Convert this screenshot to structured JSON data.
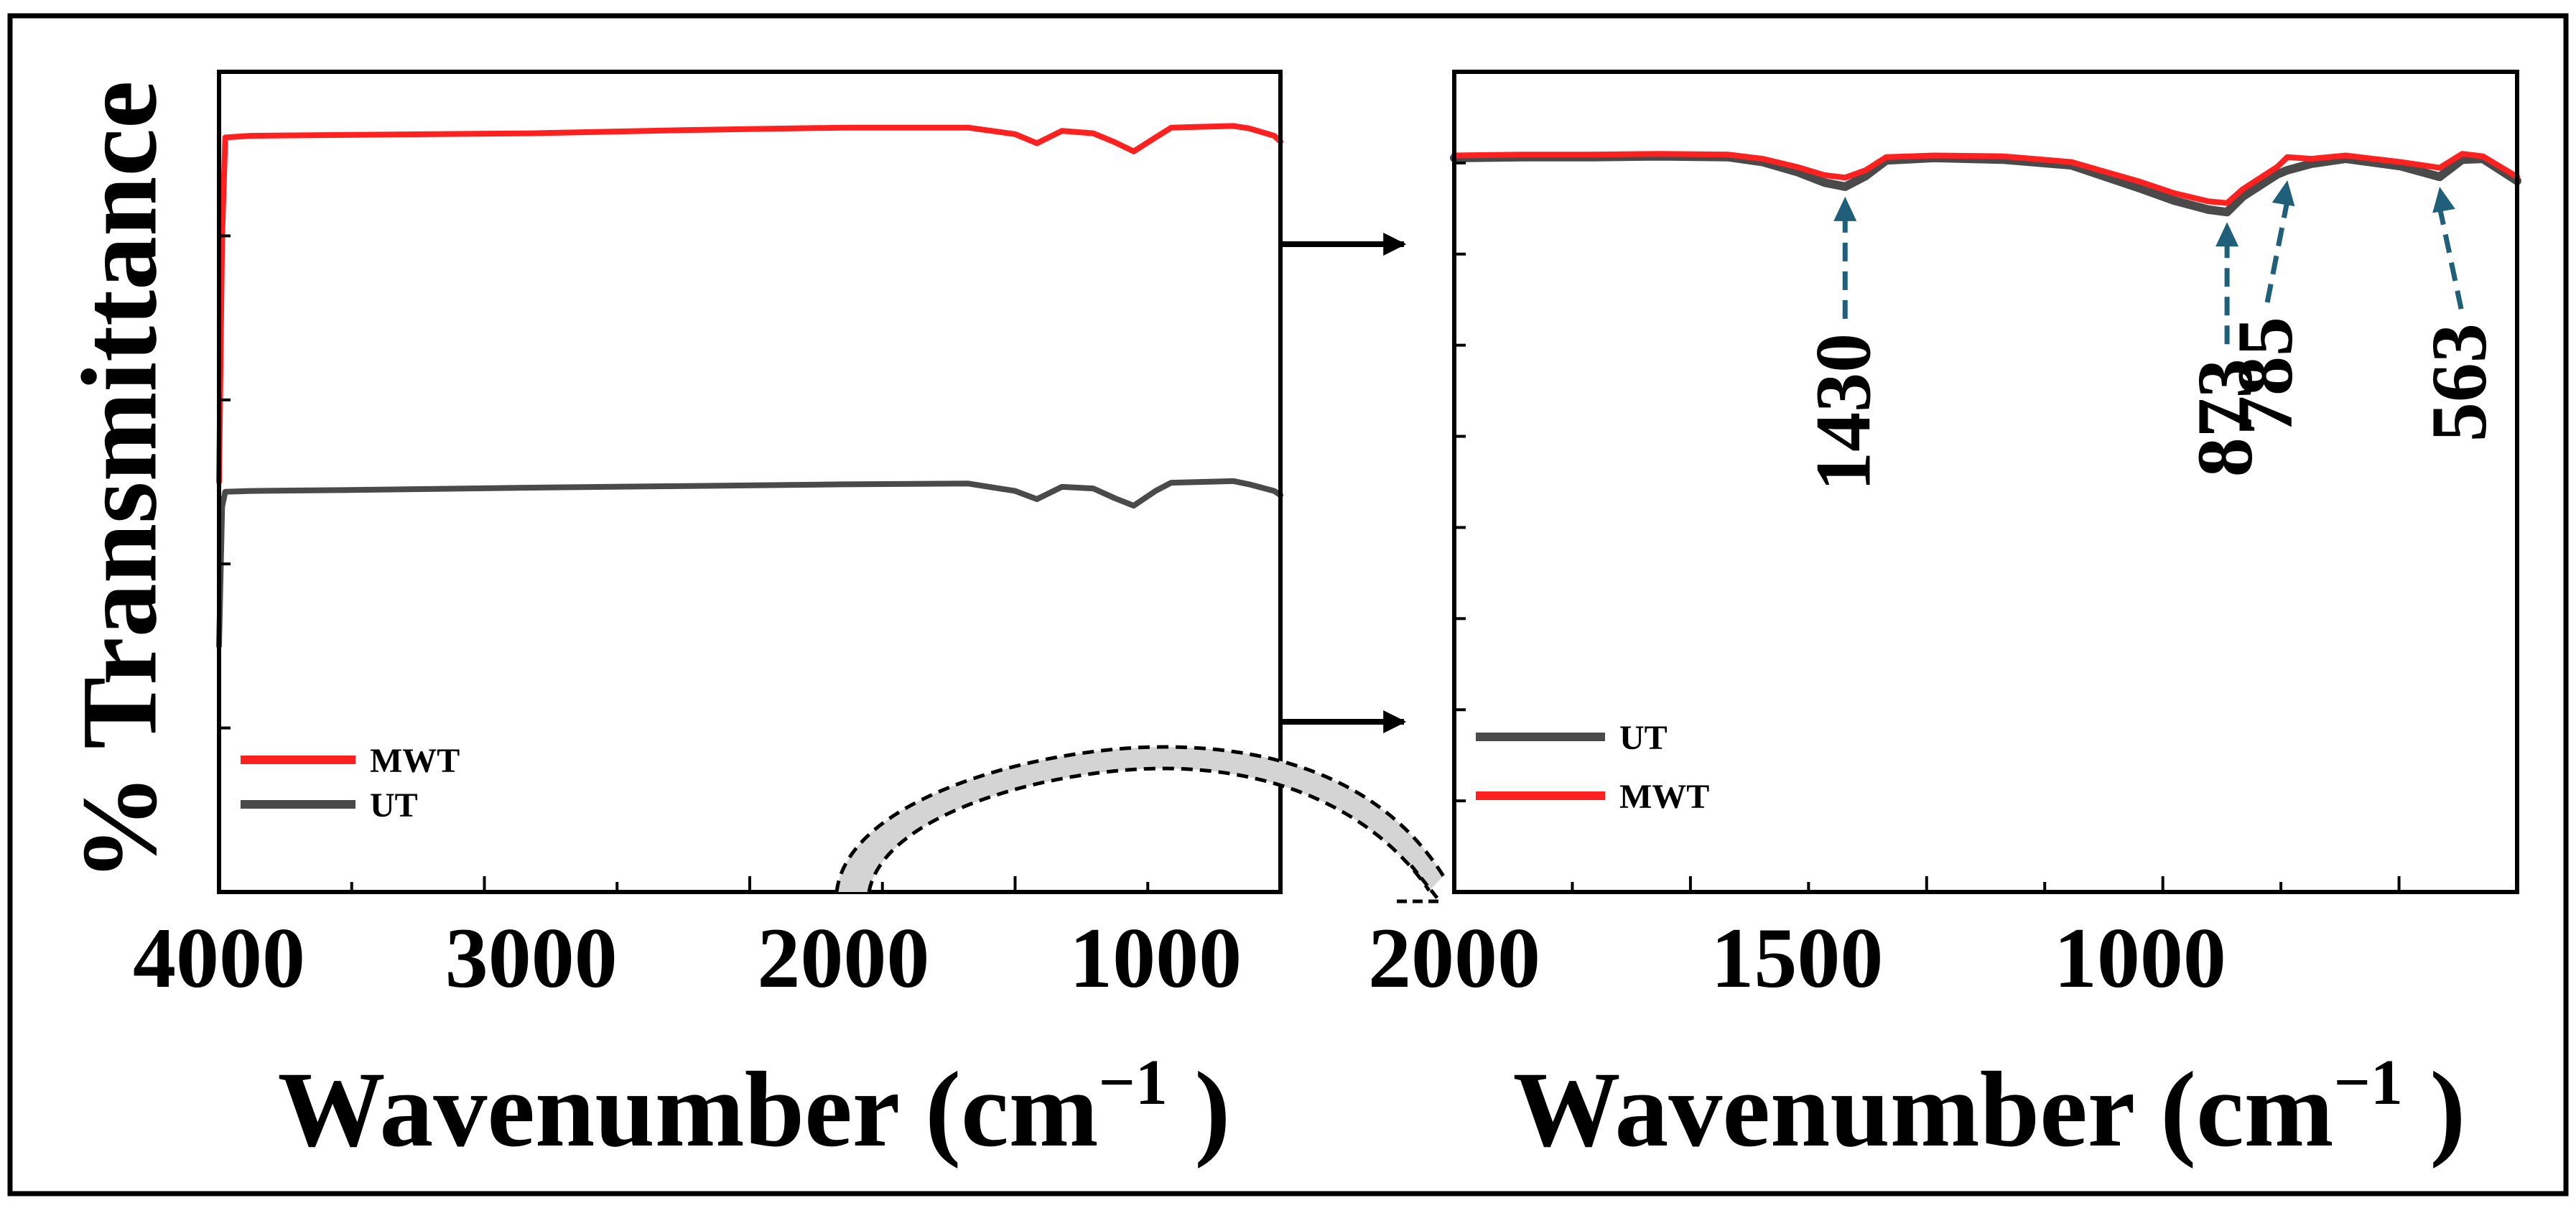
{
  "chart_data": [
    {
      "type": "line",
      "title": "",
      "xlabel": "Wavenumber (cm",
      "xlabel_sup": "−1",
      "xlabel_end": " )",
      "ylabel": "% Transmittance",
      "xlim": [
        4000,
        600
      ],
      "ylim": [
        0,
        100
      ],
      "x_ticks": [
        "4000",
        "3000",
        "2000",
        "1000"
      ],
      "x_tick_values": [
        4000,
        3000,
        2000,
        1000
      ],
      "x_tick_count": 8,
      "y_tick_count": 5,
      "y_ticks_hidden": true,
      "legend_position": "bottom-left",
      "series": [
        {
          "name": "MWT",
          "color": "#ff2020",
          "x": [
            4000,
            3990,
            3980,
            3900,
            3600,
            3000,
            2500,
            2000,
            1600,
            1450,
            1380,
            1300,
            1200,
            1130,
            1070,
            1000,
            950,
            850,
            750,
            700,
            620,
            600
          ],
          "y": [
            50,
            80,
            92,
            92.2,
            92.3,
            92.5,
            92.9,
            93.2,
            93.2,
            92.4,
            91.3,
            92.8,
            92.5,
            91.4,
            90.3,
            92.0,
            93.2,
            93.3,
            93.4,
            93.1,
            92.2,
            91.5
          ]
        },
        {
          "name": "UT",
          "color": "#4a4a4a",
          "x": [
            4000,
            3990,
            3980,
            3900,
            3600,
            3000,
            2500,
            2000,
            1600,
            1450,
            1380,
            1300,
            1200,
            1130,
            1070,
            1000,
            950,
            850,
            750,
            700,
            620,
            600
          ],
          "y": [
            30,
            47,
            48.8,
            48.9,
            49.0,
            49.3,
            49.5,
            49.7,
            49.8,
            48.9,
            47.9,
            49.4,
            49.2,
            48.0,
            47.1,
            48.9,
            49.9,
            50.0,
            50.1,
            49.7,
            48.9,
            48.4
          ]
        }
      ]
    },
    {
      "type": "line",
      "title": "",
      "xlabel": "Wavenumber (cm",
      "xlabel_sup": "−1",
      "xlabel_end": " )",
      "ylabel": "",
      "xlim": [
        2000,
        450
      ],
      "ylim": [
        0,
        100
      ],
      "x_ticks": [
        "2000",
        "1500",
        "1000"
      ],
      "x_tick_values": [
        2000,
        1500,
        1000
      ],
      "x_tick_count": 9,
      "y_tick_count": 9,
      "y_ticks_hidden": true,
      "legend_position": "bottom-left",
      "series": [
        {
          "name": "UT",
          "color": "#4a4a4a",
          "x": [
            2000,
            1900,
            1800,
            1700,
            1600,
            1550,
            1500,
            1460,
            1430,
            1400,
            1370,
            1300,
            1200,
            1100,
            1000,
            950,
            900,
            873,
            850,
            800,
            785,
            750,
            700,
            620,
            563,
            530,
            500,
            450
          ],
          "y": [
            89.5,
            89.6,
            89.6,
            89.7,
            89.6,
            89.0,
            87.8,
            86.5,
            86.0,
            87.3,
            89.2,
            89.5,
            89.3,
            88.6,
            85.8,
            84.3,
            83.2,
            82.9,
            84.8,
            87.5,
            88.0,
            88.8,
            89.4,
            88.5,
            87.2,
            89.3,
            89.4,
            86.7
          ]
        },
        {
          "name": "MWT",
          "color": "#ff2020",
          "x": [
            2000,
            1900,
            1800,
            1700,
            1600,
            1550,
            1500,
            1460,
            1430,
            1400,
            1370,
            1300,
            1200,
            1100,
            1000,
            950,
            900,
            873,
            850,
            800,
            785,
            750,
            700,
            620,
            563,
            530,
            500,
            450
          ],
          "y": [
            89.8,
            89.9,
            89.9,
            90.0,
            89.9,
            89.4,
            88.4,
            87.4,
            87.1,
            88.0,
            89.6,
            89.8,
            89.7,
            89.0,
            86.6,
            85.2,
            84.2,
            84.0,
            85.7,
            88.4,
            89.6,
            89.4,
            89.8,
            89.0,
            88.3,
            90.0,
            89.7,
            87.2
          ]
        }
      ],
      "annotations": [
        {
          "label": "1430",
          "x": 1430
        },
        {
          "label": "873",
          "x": 873
        },
        {
          "label": "785",
          "x": 785
        },
        {
          "label": "563",
          "x": 563
        }
      ]
    }
  ]
}
